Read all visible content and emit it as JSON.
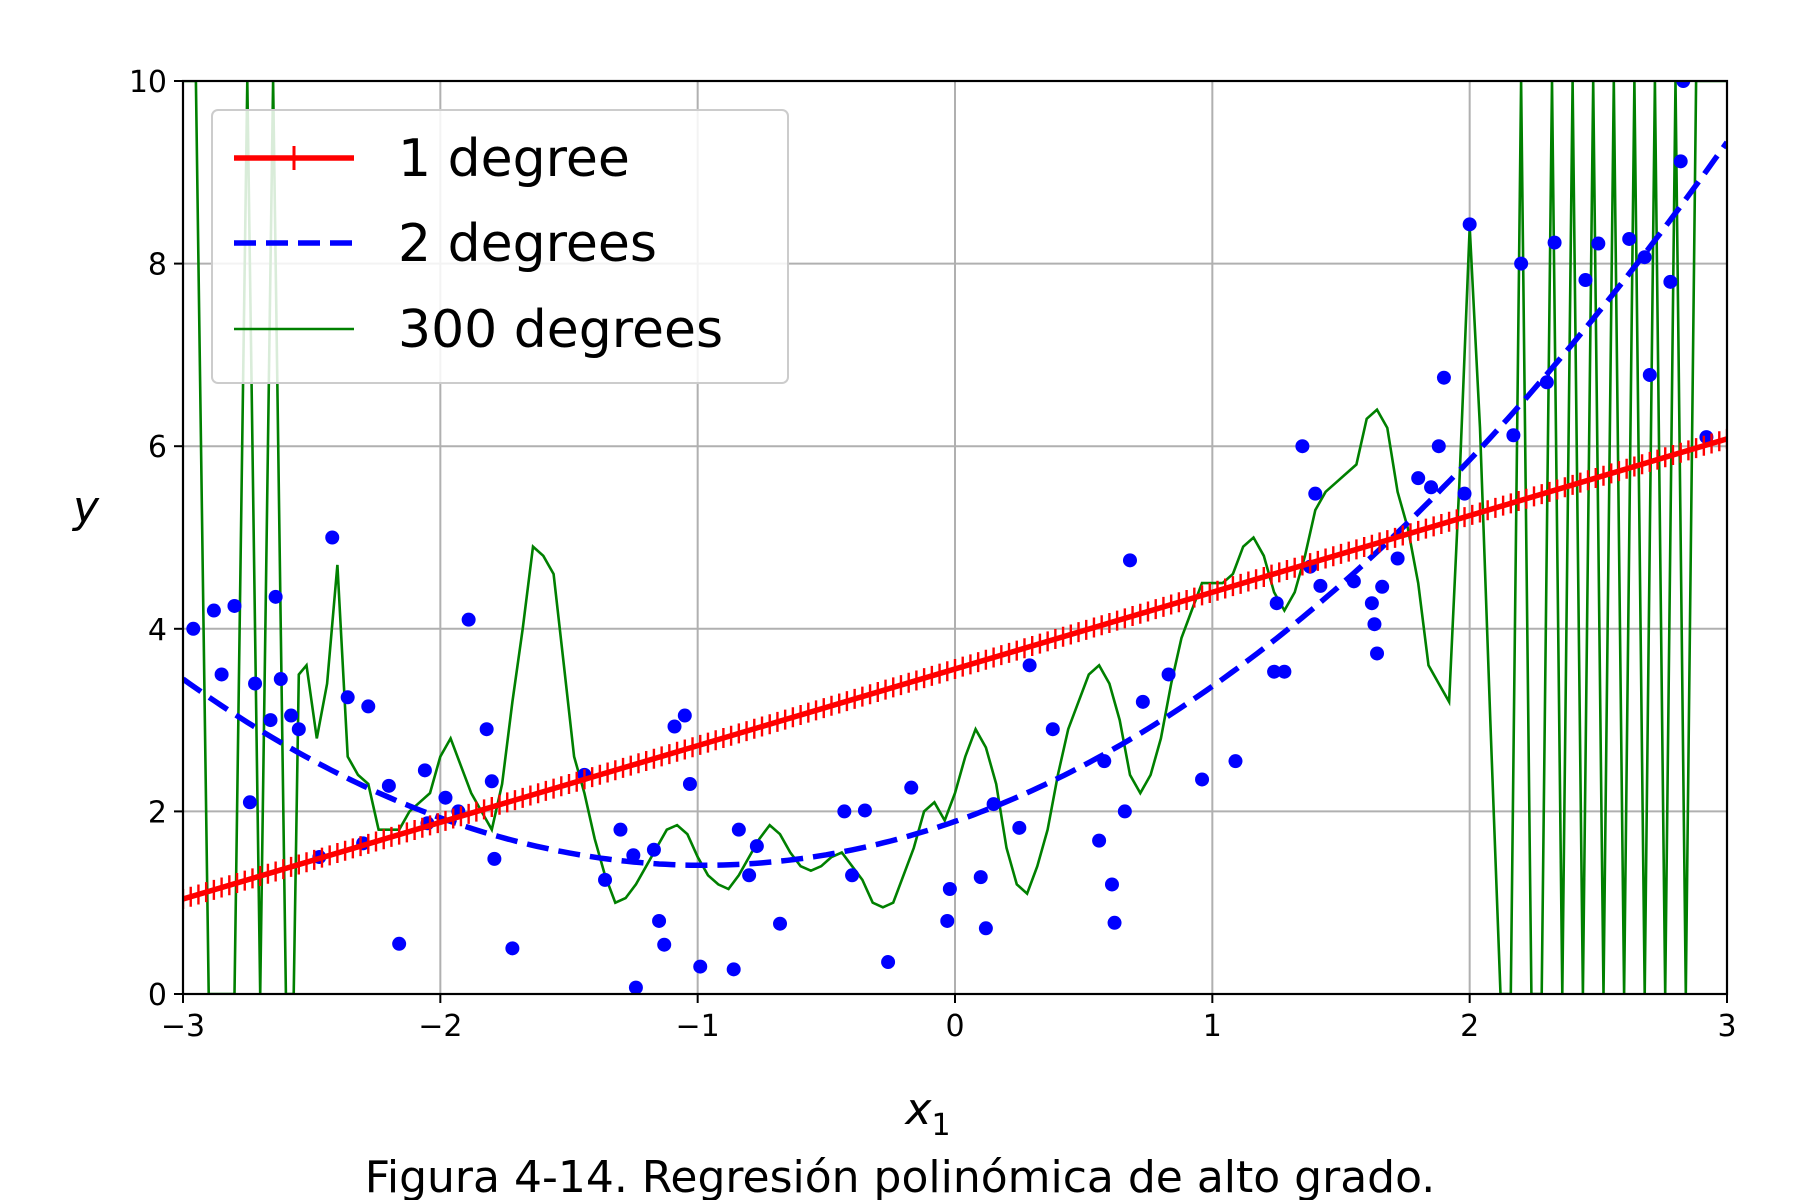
{
  "chart_data": {
    "type": "line",
    "xlabel_base": "x",
    "xlabel_sub": "1",
    "ylabel": "y",
    "xlim": [
      -3,
      3
    ],
    "ylim": [
      0,
      10
    ],
    "x_ticks": [
      -3,
      -2,
      -1,
      0,
      1,
      2,
      3
    ],
    "x_tick_labels": [
      "−3",
      "−2",
      "−1",
      "0",
      "1",
      "2",
      "3"
    ],
    "y_ticks": [
      0,
      2,
      4,
      6,
      8,
      10
    ],
    "y_tick_labels": [
      "0",
      "2",
      "4",
      "6",
      "8",
      "10"
    ],
    "grid": true,
    "legend_position": "top-left",
    "series": [
      {
        "name": "1 degree",
        "color": "#ff0000",
        "style": "solid-with-plus-markers",
        "fit": {
          "kind": "linear",
          "intercept": 3.56,
          "slope": 0.84
        }
      },
      {
        "name": "2 degrees",
        "color": "#0000ff",
        "style": "dashed",
        "fit": {
          "kind": "quadratic",
          "a": 0.5,
          "b": 0.98,
          "c": 1.89
        }
      },
      {
        "name": "300 degrees",
        "color": "#008000",
        "style": "thin-solid",
        "x": [
          -3,
          -2.95,
          -2.9,
          -2.85,
          -2.8,
          -2.75,
          -2.7,
          -2.65,
          -2.6,
          -2.57,
          -2.55,
          -2.52,
          -2.48,
          -2.44,
          -2.4,
          -2.36,
          -2.32,
          -2.28,
          -2.24,
          -2.2,
          -2.16,
          -2.12,
          -2.08,
          -2.04,
          -2.0,
          -1.96,
          -1.92,
          -1.88,
          -1.84,
          -1.8,
          -1.76,
          -1.72,
          -1.68,
          -1.64,
          -1.6,
          -1.56,
          -1.52,
          -1.48,
          -1.44,
          -1.4,
          -1.36,
          -1.32,
          -1.28,
          -1.24,
          -1.2,
          -1.16,
          -1.12,
          -1.08,
          -1.04,
          -1.0,
          -0.96,
          -0.92,
          -0.88,
          -0.84,
          -0.8,
          -0.76,
          -0.72,
          -0.68,
          -0.64,
          -0.6,
          -0.56,
          -0.52,
          -0.48,
          -0.44,
          -0.4,
          -0.36,
          -0.32,
          -0.28,
          -0.24,
          -0.2,
          -0.16,
          -0.12,
          -0.08,
          -0.04,
          0.0,
          0.04,
          0.08,
          0.12,
          0.16,
          0.2,
          0.24,
          0.28,
          0.32,
          0.36,
          0.4,
          0.44,
          0.48,
          0.52,
          0.56,
          0.6,
          0.64,
          0.68,
          0.72,
          0.76,
          0.8,
          0.84,
          0.88,
          0.92,
          0.96,
          1.0,
          1.04,
          1.08,
          1.12,
          1.16,
          1.2,
          1.24,
          1.28,
          1.32,
          1.36,
          1.4,
          1.44,
          1.48,
          1.52,
          1.56,
          1.6,
          1.64,
          1.68,
          1.72,
          1.76,
          1.8,
          1.84,
          1.88,
          1.92,
          1.96,
          2.0,
          2.04,
          2.08,
          2.12,
          2.16,
          2.2,
          2.24,
          2.28,
          2.32,
          2.36,
          2.4,
          2.44,
          2.48,
          2.52,
          2.56,
          2.6,
          2.64,
          2.68,
          2.72,
          2.76,
          2.8,
          2.84,
          2.88,
          2.92,
          2.96,
          3.0
        ],
        "y": [
          10,
          10,
          0,
          0,
          0,
          10,
          0,
          10,
          0,
          0,
          3.5,
          3.6,
          2.8,
          3.4,
          4.7,
          2.6,
          2.4,
          2.3,
          1.8,
          1.8,
          1.8,
          2.0,
          2.1,
          2.2,
          2.6,
          2.8,
          2.5,
          2.2,
          2.0,
          1.8,
          2.3,
          3.2,
          4.0,
          4.9,
          4.8,
          4.6,
          3.6,
          2.6,
          2.2,
          1.7,
          1.3,
          1.0,
          1.05,
          1.2,
          1.4,
          1.6,
          1.8,
          1.85,
          1.75,
          1.5,
          1.3,
          1.2,
          1.15,
          1.3,
          1.5,
          1.7,
          1.85,
          1.75,
          1.55,
          1.4,
          1.35,
          1.4,
          1.5,
          1.55,
          1.4,
          1.25,
          1.0,
          0.95,
          1.0,
          1.3,
          1.6,
          2.0,
          2.1,
          1.9,
          2.2,
          2.6,
          2.9,
          2.7,
          2.3,
          1.6,
          1.2,
          1.1,
          1.4,
          1.8,
          2.4,
          2.9,
          3.2,
          3.5,
          3.6,
          3.4,
          3.0,
          2.4,
          2.2,
          2.4,
          2.8,
          3.4,
          3.9,
          4.2,
          4.5,
          4.5,
          4.5,
          4.6,
          4.9,
          5.0,
          4.8,
          4.4,
          4.2,
          4.4,
          4.8,
          5.3,
          5.5,
          5.6,
          5.7,
          5.8,
          6.3,
          6.4,
          6.2,
          5.5,
          5.1,
          4.5,
          3.6,
          3.4,
          3.2,
          5.6,
          8.4,
          6.2,
          3.0,
          0,
          0,
          10,
          0,
          0,
          10,
          0,
          10,
          0,
          10,
          0,
          10,
          0,
          10,
          0,
          10,
          0,
          10,
          0,
          10,
          10,
          10,
          10
        ]
      }
    ],
    "scatter_points": {
      "color": "#0000ff",
      "x": [
        -2.96,
        -2.88,
        -2.85,
        -2.8,
        -2.74,
        -2.72,
        -2.66,
        -2.64,
        -2.62,
        -2.58,
        -2.55,
        -2.47,
        -2.42,
        -2.36,
        -2.3,
        -2.28,
        -2.2,
        -2.16,
        -2.06,
        -2.05,
        -1.98,
        -1.93,
        -1.89,
        -1.82,
        -1.8,
        -1.79,
        -1.72,
        -1.44,
        -1.36,
        -1.3,
        -1.25,
        -1.24,
        -1.17,
        -1.15,
        -1.13,
        -1.09,
        -1.05,
        -1.03,
        -0.99,
        -0.86,
        -0.84,
        -0.8,
        -0.77,
        -0.68,
        -0.43,
        -0.4,
        -0.35,
        -0.26,
        -0.17,
        -0.03,
        -0.02,
        0.1,
        0.12,
        0.15,
        0.25,
        0.29,
        0.38,
        0.56,
        0.58,
        0.61,
        0.62,
        0.66,
        0.68,
        0.73,
        0.83,
        0.96,
        1.09,
        1.24,
        1.25,
        1.28,
        1.35,
        1.38,
        1.4,
        1.42,
        1.55,
        1.62,
        1.63,
        1.64,
        1.66,
        1.72,
        1.8,
        1.85,
        1.88,
        1.9,
        1.98,
        2.0,
        2.17,
        2.2,
        2.3,
        2.33,
        2.45,
        2.5,
        2.62,
        2.68,
        2.7,
        2.78,
        2.82,
        2.83,
        2.92
      ],
      "y": [
        4.0,
        4.2,
        3.5,
        4.25,
        2.1,
        3.4,
        3.0,
        4.35,
        3.45,
        3.05,
        2.9,
        1.5,
        5.0,
        3.25,
        1.65,
        3.15,
        2.28,
        0.55,
        2.45,
        1.87,
        2.15,
        2.0,
        4.1,
        2.9,
        2.33,
        1.48,
        0.5,
        2.4,
        1.25,
        1.8,
        1.52,
        0.07,
        1.58,
        0.8,
        0.54,
        2.93,
        3.05,
        2.3,
        0.3,
        0.27,
        1.8,
        1.3,
        1.62,
        0.77,
        2.0,
        1.3,
        2.01,
        0.35,
        2.26,
        0.8,
        1.15,
        1.28,
        0.72,
        2.08,
        1.82,
        3.6,
        2.9,
        1.68,
        2.55,
        1.2,
        0.78,
        2.0,
        4.75,
        3.2,
        3.5,
        2.35,
        2.55,
        3.53,
        4.28,
        3.53,
        6.0,
        4.68,
        5.48,
        4.47,
        4.52,
        4.28,
        4.05,
        3.73,
        4.46,
        4.77,
        5.65,
        5.55,
        6.0,
        6.75,
        5.48,
        8.43,
        6.12,
        8.0,
        6.7,
        8.23,
        7.82,
        8.22,
        8.27,
        8.07,
        6.78,
        7.8,
        9.12,
        10.0,
        6.1
      ]
    },
    "caption": "Figura 4-14. Regresión polinómica de alto grado."
  }
}
